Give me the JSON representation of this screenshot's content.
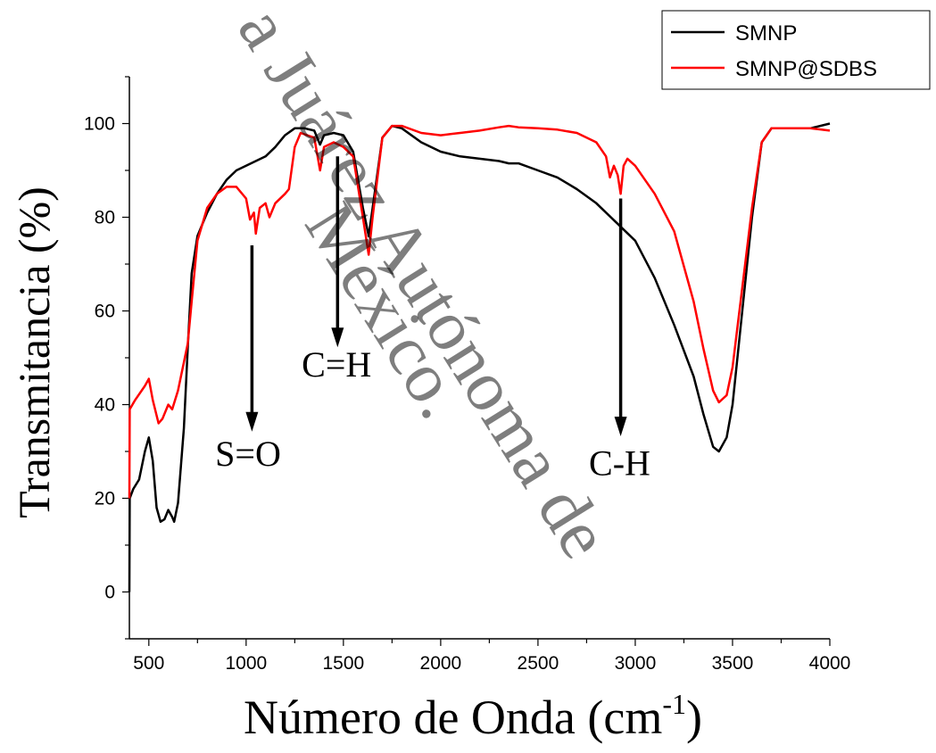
{
  "chart_data": {
    "type": "line",
    "title": "",
    "xlabel": "Número de Onda (cm",
    "xlabel_sup": "-1",
    "xlabel_suffix": ")",
    "ylabel": "Transmitancia (%)",
    "xlim": [
      400,
      4000
    ],
    "ylim": [
      -10,
      110
    ],
    "x_ticks": [
      500,
      1000,
      1500,
      2000,
      2500,
      3000,
      3500,
      4000
    ],
    "y_ticks": [
      0,
      20,
      40,
      60,
      80,
      100
    ],
    "grid": false,
    "legend_position": "top-right",
    "series": [
      {
        "name": "SMNP",
        "color": "#000000",
        "points": [
          [
            400,
            0
          ],
          [
            402,
            20
          ],
          [
            420,
            22
          ],
          [
            450,
            24
          ],
          [
            480,
            30
          ],
          [
            500,
            33
          ],
          [
            520,
            28
          ],
          [
            540,
            18
          ],
          [
            560,
            15
          ],
          [
            580,
            15.5
          ],
          [
            600,
            17.5
          ],
          [
            620,
            16
          ],
          [
            630,
            15
          ],
          [
            650,
            19
          ],
          [
            680,
            35
          ],
          [
            700,
            52
          ],
          [
            720,
            68
          ],
          [
            750,
            76
          ],
          [
            800,
            81
          ],
          [
            850,
            85
          ],
          [
            900,
            88
          ],
          [
            950,
            90
          ],
          [
            1000,
            91
          ],
          [
            1050,
            92
          ],
          [
            1100,
            93
          ],
          [
            1150,
            95
          ],
          [
            1200,
            97.5
          ],
          [
            1250,
            99
          ],
          [
            1300,
            99
          ],
          [
            1350,
            98.5
          ],
          [
            1380,
            95.5
          ],
          [
            1400,
            97.5
          ],
          [
            1450,
            98
          ],
          [
            1500,
            97.5
          ],
          [
            1550,
            94
          ],
          [
            1600,
            82
          ],
          [
            1630,
            76
          ],
          [
            1650,
            82
          ],
          [
            1700,
            97
          ],
          [
            1750,
            99.5
          ],
          [
            1800,
            99
          ],
          [
            1900,
            96
          ],
          [
            2000,
            94
          ],
          [
            2100,
            93
          ],
          [
            2200,
            92.5
          ],
          [
            2300,
            92
          ],
          [
            2350,
            91.5
          ],
          [
            2400,
            91.5
          ],
          [
            2500,
            90
          ],
          [
            2600,
            88.5
          ],
          [
            2700,
            86
          ],
          [
            2800,
            83
          ],
          [
            2850,
            81
          ],
          [
            2900,
            79
          ],
          [
            2950,
            77
          ],
          [
            3000,
            75
          ],
          [
            3100,
            67
          ],
          [
            3200,
            57
          ],
          [
            3300,
            46
          ],
          [
            3350,
            38
          ],
          [
            3400,
            31
          ],
          [
            3430,
            30
          ],
          [
            3470,
            33
          ],
          [
            3500,
            40
          ],
          [
            3550,
            60
          ],
          [
            3600,
            80
          ],
          [
            3650,
            96
          ],
          [
            3700,
            99
          ],
          [
            3800,
            99
          ],
          [
            3900,
            99
          ],
          [
            4000,
            100
          ]
        ]
      },
      {
        "name": "SMNP@SDBS",
        "color": "#ff0000",
        "points": [
          [
            400,
            20
          ],
          [
            402,
            39
          ],
          [
            430,
            41
          ],
          [
            480,
            44
          ],
          [
            500,
            45.5
          ],
          [
            520,
            41
          ],
          [
            550,
            36
          ],
          [
            570,
            37
          ],
          [
            600,
            40
          ],
          [
            620,
            39
          ],
          [
            650,
            43
          ],
          [
            700,
            53
          ],
          [
            720,
            62
          ],
          [
            750,
            75
          ],
          [
            800,
            82
          ],
          [
            850,
            85
          ],
          [
            900,
            86.5
          ],
          [
            950,
            86.5
          ],
          [
            1000,
            84
          ],
          [
            1020,
            79.5
          ],
          [
            1040,
            81
          ],
          [
            1050,
            76.5
          ],
          [
            1070,
            82
          ],
          [
            1100,
            83
          ],
          [
            1120,
            80
          ],
          [
            1150,
            83
          ],
          [
            1200,
            85
          ],
          [
            1220,
            86
          ],
          [
            1250,
            95
          ],
          [
            1280,
            98
          ],
          [
            1350,
            97
          ],
          [
            1380,
            90
          ],
          [
            1400,
            95
          ],
          [
            1450,
            96
          ],
          [
            1500,
            95
          ],
          [
            1550,
            93
          ],
          [
            1600,
            80
          ],
          [
            1630,
            72
          ],
          [
            1650,
            80
          ],
          [
            1700,
            97
          ],
          [
            1750,
            99.5
          ],
          [
            1800,
            99.5
          ],
          [
            1900,
            98
          ],
          [
            2000,
            97.5
          ],
          [
            2100,
            98
          ],
          [
            2200,
            98.5
          ],
          [
            2300,
            99.2
          ],
          [
            2350,
            99.5
          ],
          [
            2400,
            99.2
          ],
          [
            2500,
            99
          ],
          [
            2600,
            98.7
          ],
          [
            2700,
            98
          ],
          [
            2800,
            96
          ],
          [
            2850,
            93
          ],
          [
            2870,
            88.5
          ],
          [
            2890,
            91
          ],
          [
            2910,
            89
          ],
          [
            2925,
            85
          ],
          [
            2940,
            91
          ],
          [
            2960,
            92.5
          ],
          [
            3000,
            91
          ],
          [
            3100,
            85
          ],
          [
            3200,
            77
          ],
          [
            3300,
            62
          ],
          [
            3350,
            52
          ],
          [
            3400,
            43
          ],
          [
            3430,
            40.5
          ],
          [
            3470,
            42
          ],
          [
            3500,
            48
          ],
          [
            3550,
            65
          ],
          [
            3600,
            82
          ],
          [
            3650,
            96
          ],
          [
            3700,
            99
          ],
          [
            3800,
            99
          ],
          [
            3900,
            99
          ],
          [
            4000,
            98.5
          ]
        ]
      }
    ],
    "annotations": [
      {
        "text": "S=O",
        "label_x": 1010,
        "label_y": 27,
        "arrow_x": 1030,
        "arrow_from": 74,
        "arrow_to": 35
      },
      {
        "text": "C=H",
        "label_x": 1465,
        "label_y": 46,
        "arrow_x": 1470,
        "arrow_from": 93,
        "arrow_to": 53
      },
      {
        "text": "C-H",
        "label_x": 2920,
        "label_y": 25,
        "arrow_x": 2925,
        "arrow_from": 84,
        "arrow_to": 34
      }
    ]
  },
  "watermark": {
    "lines": [
      "a Juárez Autónoma de",
      "México."
    ],
    "color": "#888888"
  }
}
